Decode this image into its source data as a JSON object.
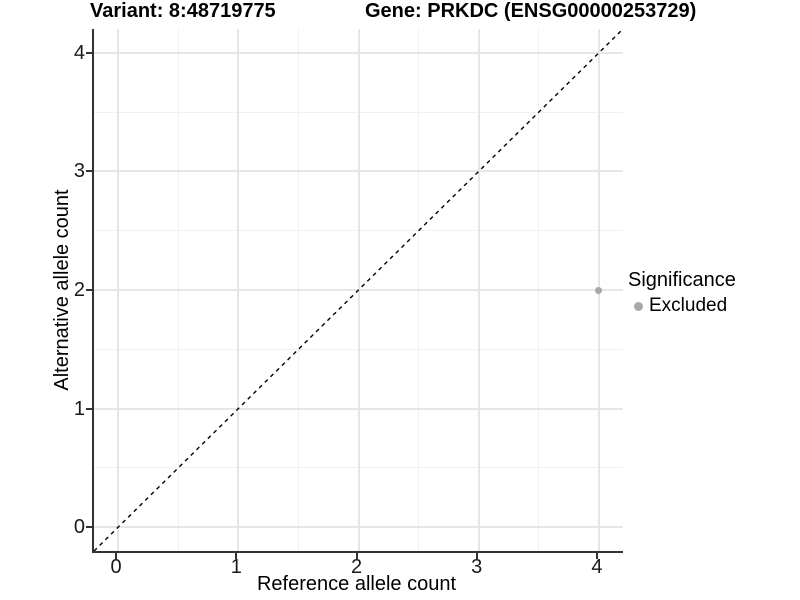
{
  "header": {
    "variant_title": "Variant: 8:48719775",
    "gene_title": "Gene: PRKDC (ENSG00000253729)"
  },
  "chart_data": {
    "type": "scatter",
    "xlabel": "Reference allele count",
    "ylabel": "Alternative allele count",
    "x_ticks": [
      "0",
      "1",
      "2",
      "3",
      "4"
    ],
    "y_ticks": [
      "0",
      "1",
      "2",
      "3",
      "4"
    ],
    "xlim": [
      -0.2,
      4.2
    ],
    "ylim": [
      -0.2,
      4.2
    ],
    "grid": "major and minor gridlines on white background",
    "points": [
      {
        "x": 4,
        "y": 2,
        "significance": "Excluded"
      }
    ],
    "identity_line": {
      "slope": 1,
      "intercept": 0,
      "style": "dashed",
      "color": "#000000"
    },
    "legend": {
      "title": "Significance",
      "position": "right",
      "items": [
        {
          "label": "Excluded",
          "color": "#a8a8a8"
        }
      ]
    },
    "colors": {
      "point": "#a8a8a8",
      "axis_line": "#333333",
      "grid_major": "#e6e6e6",
      "grid_minor": "#f1f1f1"
    }
  }
}
